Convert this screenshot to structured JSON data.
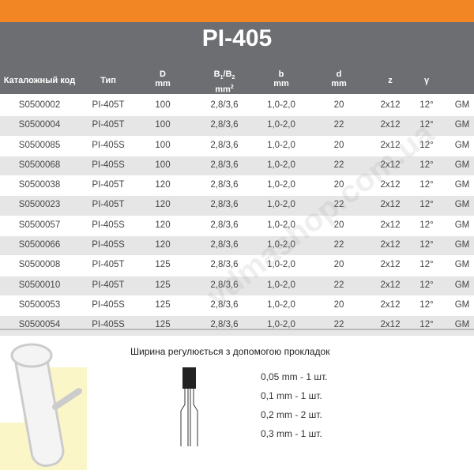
{
  "title": "PI-405",
  "columns": [
    "Каталожный код",
    "Тип",
    "D",
    "mm",
    "B",
    "1",
    "/B",
    "2",
    "mm",
    "2",
    "b",
    "mm",
    "d",
    "mm",
    "z",
    "γ"
  ],
  "rows": [
    [
      "S0500002",
      "PI-405T",
      "100",
      "2,8/3,6",
      "1,0-2,0",
      "20",
      "2x12",
      "12°",
      "GM"
    ],
    [
      "S0500004",
      "PI-405T",
      "100",
      "2,8/3,6",
      "1,0-2,0",
      "22",
      "2x12",
      "12°",
      "GM"
    ],
    [
      "S0500085",
      "PI-405S",
      "100",
      "2,8/3,6",
      "1,0-2,0",
      "20",
      "2x12",
      "12°",
      "GM"
    ],
    [
      "S0500068",
      "PI-405S",
      "100",
      "2,8/3,6",
      "1,0-2,0",
      "22",
      "2x12",
      "12°",
      "GM"
    ],
    [
      "S0500038",
      "PI-405T",
      "120",
      "2,8/3,6",
      "1,0-2,0",
      "20",
      "2x12",
      "12°",
      "GM"
    ],
    [
      "S0500023",
      "PI-405T",
      "120",
      "2,8/3,6",
      "1,0-2,0",
      "22",
      "2x12",
      "12°",
      "GM"
    ],
    [
      "S0500057",
      "PI-405S",
      "120",
      "2,8/3,6",
      "1,0-2,0",
      "20",
      "2x12",
      "12°",
      "GM"
    ],
    [
      "S0500066",
      "PI-405S",
      "120",
      "2,8/3,6",
      "1,0-2,0",
      "22",
      "2x12",
      "12°",
      "GM"
    ],
    [
      "S0500008",
      "PI-405T",
      "125",
      "2,8/3,6",
      "1,0-2,0",
      "20",
      "2x12",
      "12°",
      "GM"
    ],
    [
      "S0500010",
      "PI-405T",
      "125",
      "2,8/3,6",
      "1,0-2,0",
      "22",
      "2x12",
      "12°",
      "GM"
    ],
    [
      "S0500053",
      "PI-405S",
      "125",
      "2,8/3,6",
      "1,0-2,0",
      "20",
      "2x12",
      "12°",
      "GM"
    ],
    [
      "S0500054",
      "PI-405S",
      "125",
      "2,8/3,6",
      "1,0-2,0",
      "22",
      "2x12",
      "12°",
      "GM"
    ]
  ],
  "note": "Ширина регулюється з допомогою прокладок",
  "spacers": [
    "0,05 mm - 1 шт.",
    "0,1 mm - 1 шт.",
    "0,2 mm - 2 шт.",
    "0,3 mm - 1 шт."
  ],
  "watermark": "vdmashop.com.ua",
  "colors": {
    "accent": "#f28524",
    "header": "#6d6e71"
  }
}
